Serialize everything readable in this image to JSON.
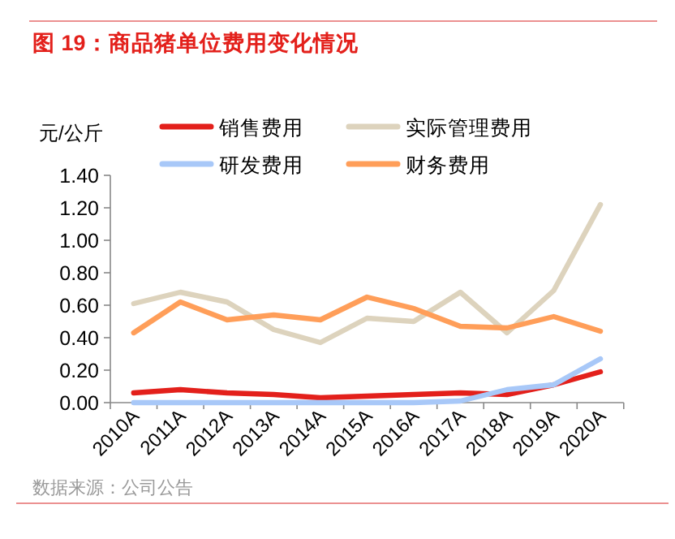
{
  "chart_data": {
    "type": "line",
    "title": "图 19：商品猪单位费用变化情况",
    "ylabel": "元/公斤",
    "categories": [
      "2010A",
      "2011A",
      "2012A",
      "2013A",
      "2014A",
      "2015A",
      "2016A",
      "2017A",
      "2018A",
      "2019A",
      "2020A"
    ],
    "series": [
      {
        "name": "销售费用",
        "color": "#e3201b",
        "values": [
          0.06,
          0.08,
          0.06,
          0.05,
          0.03,
          0.04,
          0.05,
          0.06,
          0.05,
          0.11,
          0.19
        ]
      },
      {
        "name": "实际管理费用",
        "color": "#ddd3bd",
        "values": [
          0.61,
          0.68,
          0.62,
          0.45,
          0.37,
          0.52,
          0.5,
          0.68,
          0.43,
          0.69,
          1.22
        ]
      },
      {
        "name": "研发费用",
        "color": "#a8c8f8",
        "values": [
          0,
          0,
          0,
          0,
          0,
          0,
          0,
          0.01,
          0.08,
          0.11,
          0.27
        ]
      },
      {
        "name": "财务费用",
        "color": "#ff9e59",
        "values": [
          0.43,
          0.62,
          0.51,
          0.54,
          0.51,
          0.65,
          0.58,
          0.47,
          0.46,
          0.53,
          0.44
        ]
      }
    ],
    "ylim": [
      0,
      1.4
    ],
    "yticks": [
      {
        "value": 0,
        "label": "0.00"
      },
      {
        "value": 0.2,
        "label": "0.20"
      },
      {
        "value": 0.4,
        "label": "0.40"
      },
      {
        "value": 0.6,
        "label": "0.60"
      },
      {
        "value": 0.8,
        "label": "0.80"
      },
      {
        "value": 1.0,
        "label": "1.00"
      },
      {
        "value": 1.2,
        "label": "1.20"
      },
      {
        "value": 1.4,
        "label": "1.40"
      }
    ],
    "legend": "top",
    "grid": false,
    "marker": "none",
    "line_style": "solid",
    "annotations": [
      "数据来源：公司公告"
    ]
  }
}
